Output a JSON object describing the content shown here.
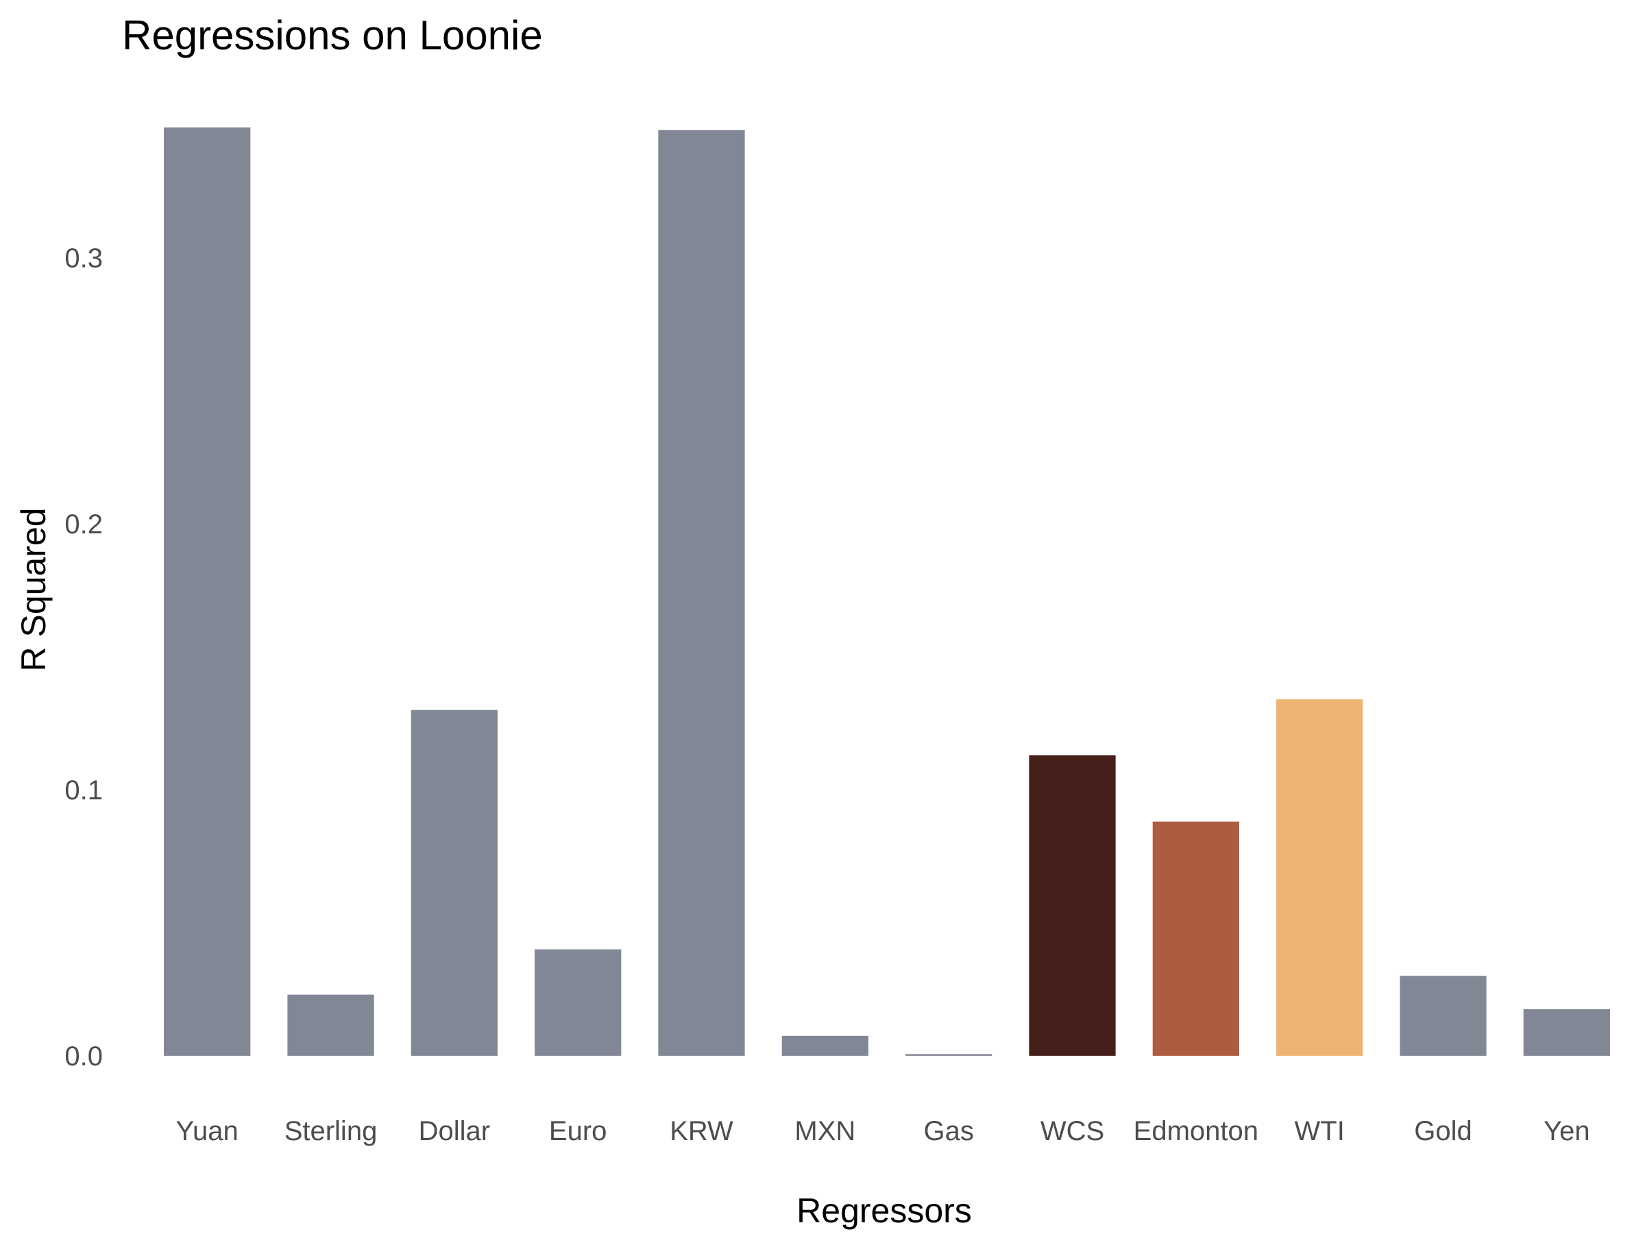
{
  "chart_data": {
    "type": "bar",
    "title": "Regressions on Loonie",
    "xlabel": "Regressors",
    "ylabel": "R Squared",
    "categories": [
      "Yuan",
      "Sterling",
      "Dollar",
      "Euro",
      "KRW",
      "MXN",
      "Gas",
      "WCS",
      "Edmonton",
      "WTI",
      "Gold",
      "Yen"
    ],
    "values": [
      0.349,
      0.023,
      0.13,
      0.04,
      0.348,
      0.0075,
      0.0006,
      0.113,
      0.088,
      0.134,
      0.03,
      0.0175
    ],
    "bar_colors": [
      "#818794",
      "#818794",
      "#818794",
      "#818794",
      "#818794",
      "#818794",
      "#818794",
      "#451F19",
      "#AE5C41",
      "#EDB471",
      "#818794",
      "#818794"
    ],
    "ylim": [
      0,
      0.35
    ],
    "yticks": [
      0.0,
      0.1,
      0.2,
      0.3
    ],
    "ytick_labels": [
      "0.0",
      "0.1",
      "0.2",
      "0.3"
    ],
    "grid": false,
    "legend": "none"
  }
}
